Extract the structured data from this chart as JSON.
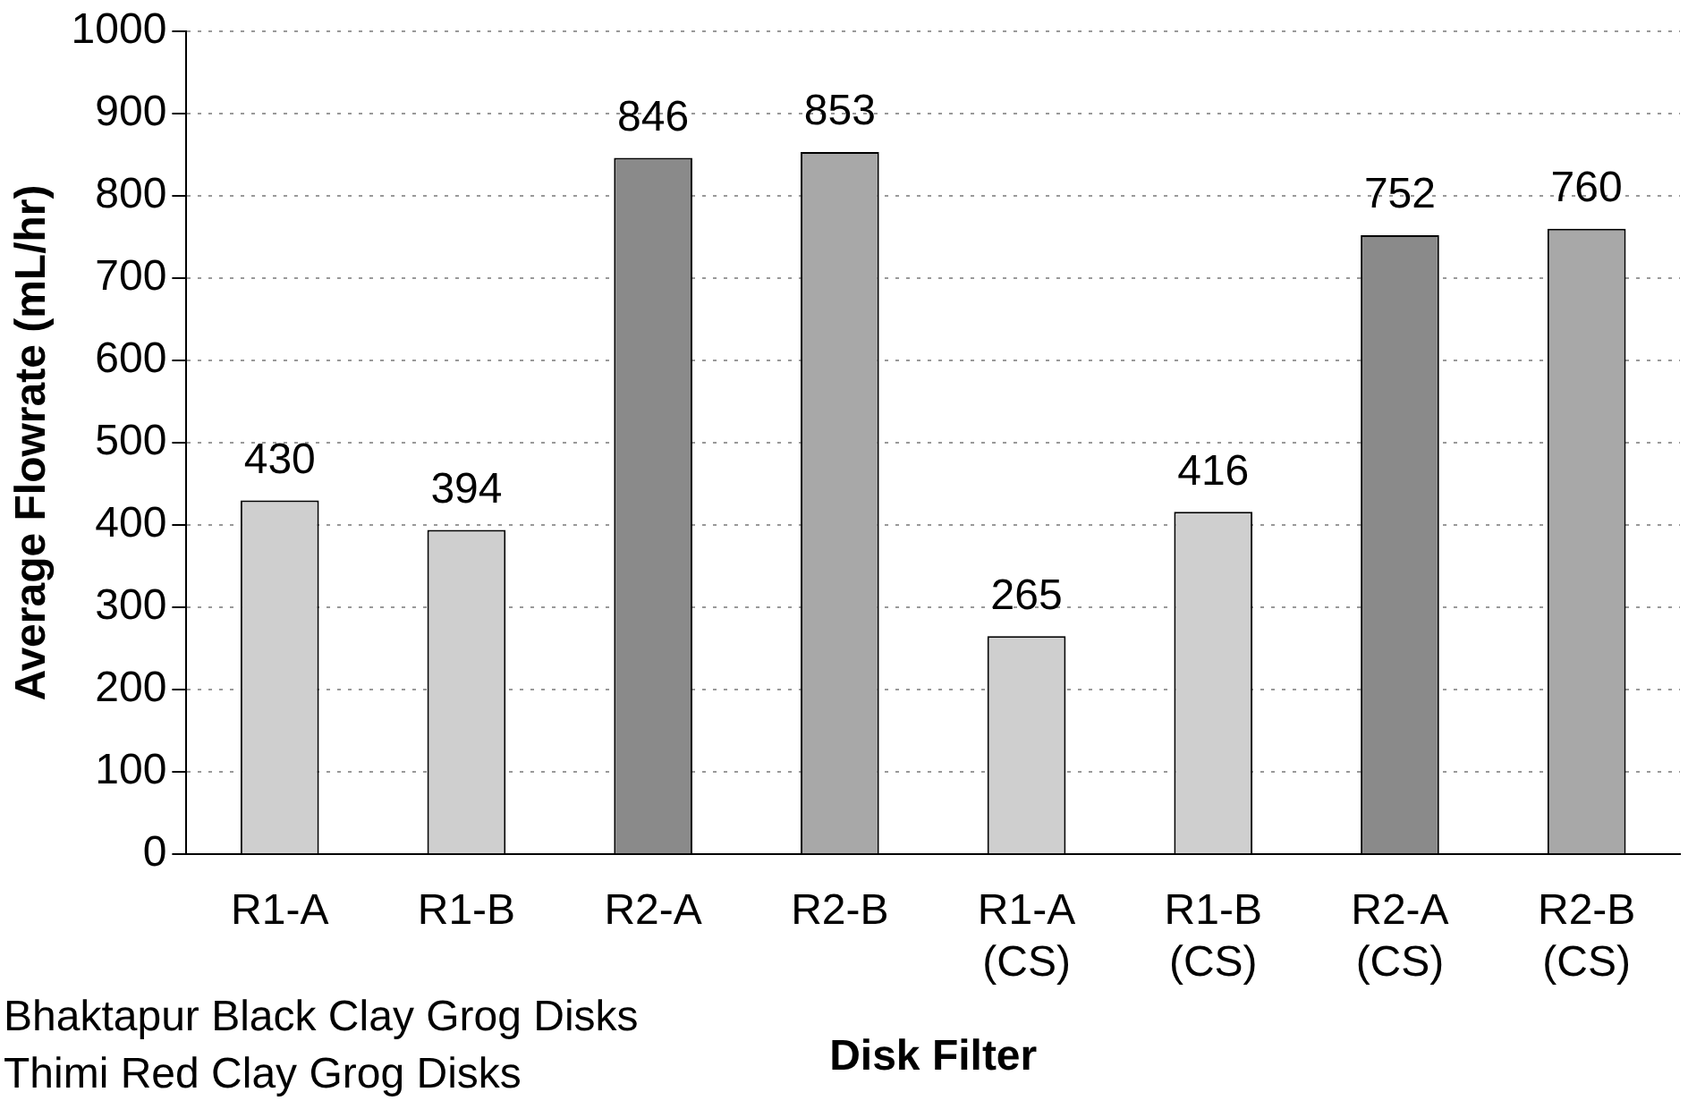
{
  "chart_data": {
    "type": "bar",
    "xlabel": "Disk Filter",
    "ylabel": "Average Flowrate (mL/hr)",
    "categories": [
      "R1-A",
      "R1-B",
      "R2-A",
      "R2-B",
      "R1-A (CS)",
      "R1-B (CS)",
      "R2-A (CS)",
      "R2-B (CS)"
    ],
    "values": [
      430,
      394,
      846,
      853,
      265,
      416,
      752,
      760
    ],
    "colors": [
      "#cfcfcf",
      "#cfcfcf",
      "#8a8a8a",
      "#a8a8a8",
      "#cfcfcf",
      "#cfcfcf",
      "#8a8a8a",
      "#a8a8a8"
    ],
    "ylim": [
      0,
      1000
    ],
    "yticks": [
      0,
      100,
      200,
      300,
      400,
      500,
      600,
      700,
      800,
      900,
      1000
    ],
    "grid": "y",
    "data_labels": true,
    "legend": false,
    "annotations": [
      "Bhaktapur Black Clay Grog Disks",
      "Thimi Red Clay Grog Disks"
    ]
  }
}
